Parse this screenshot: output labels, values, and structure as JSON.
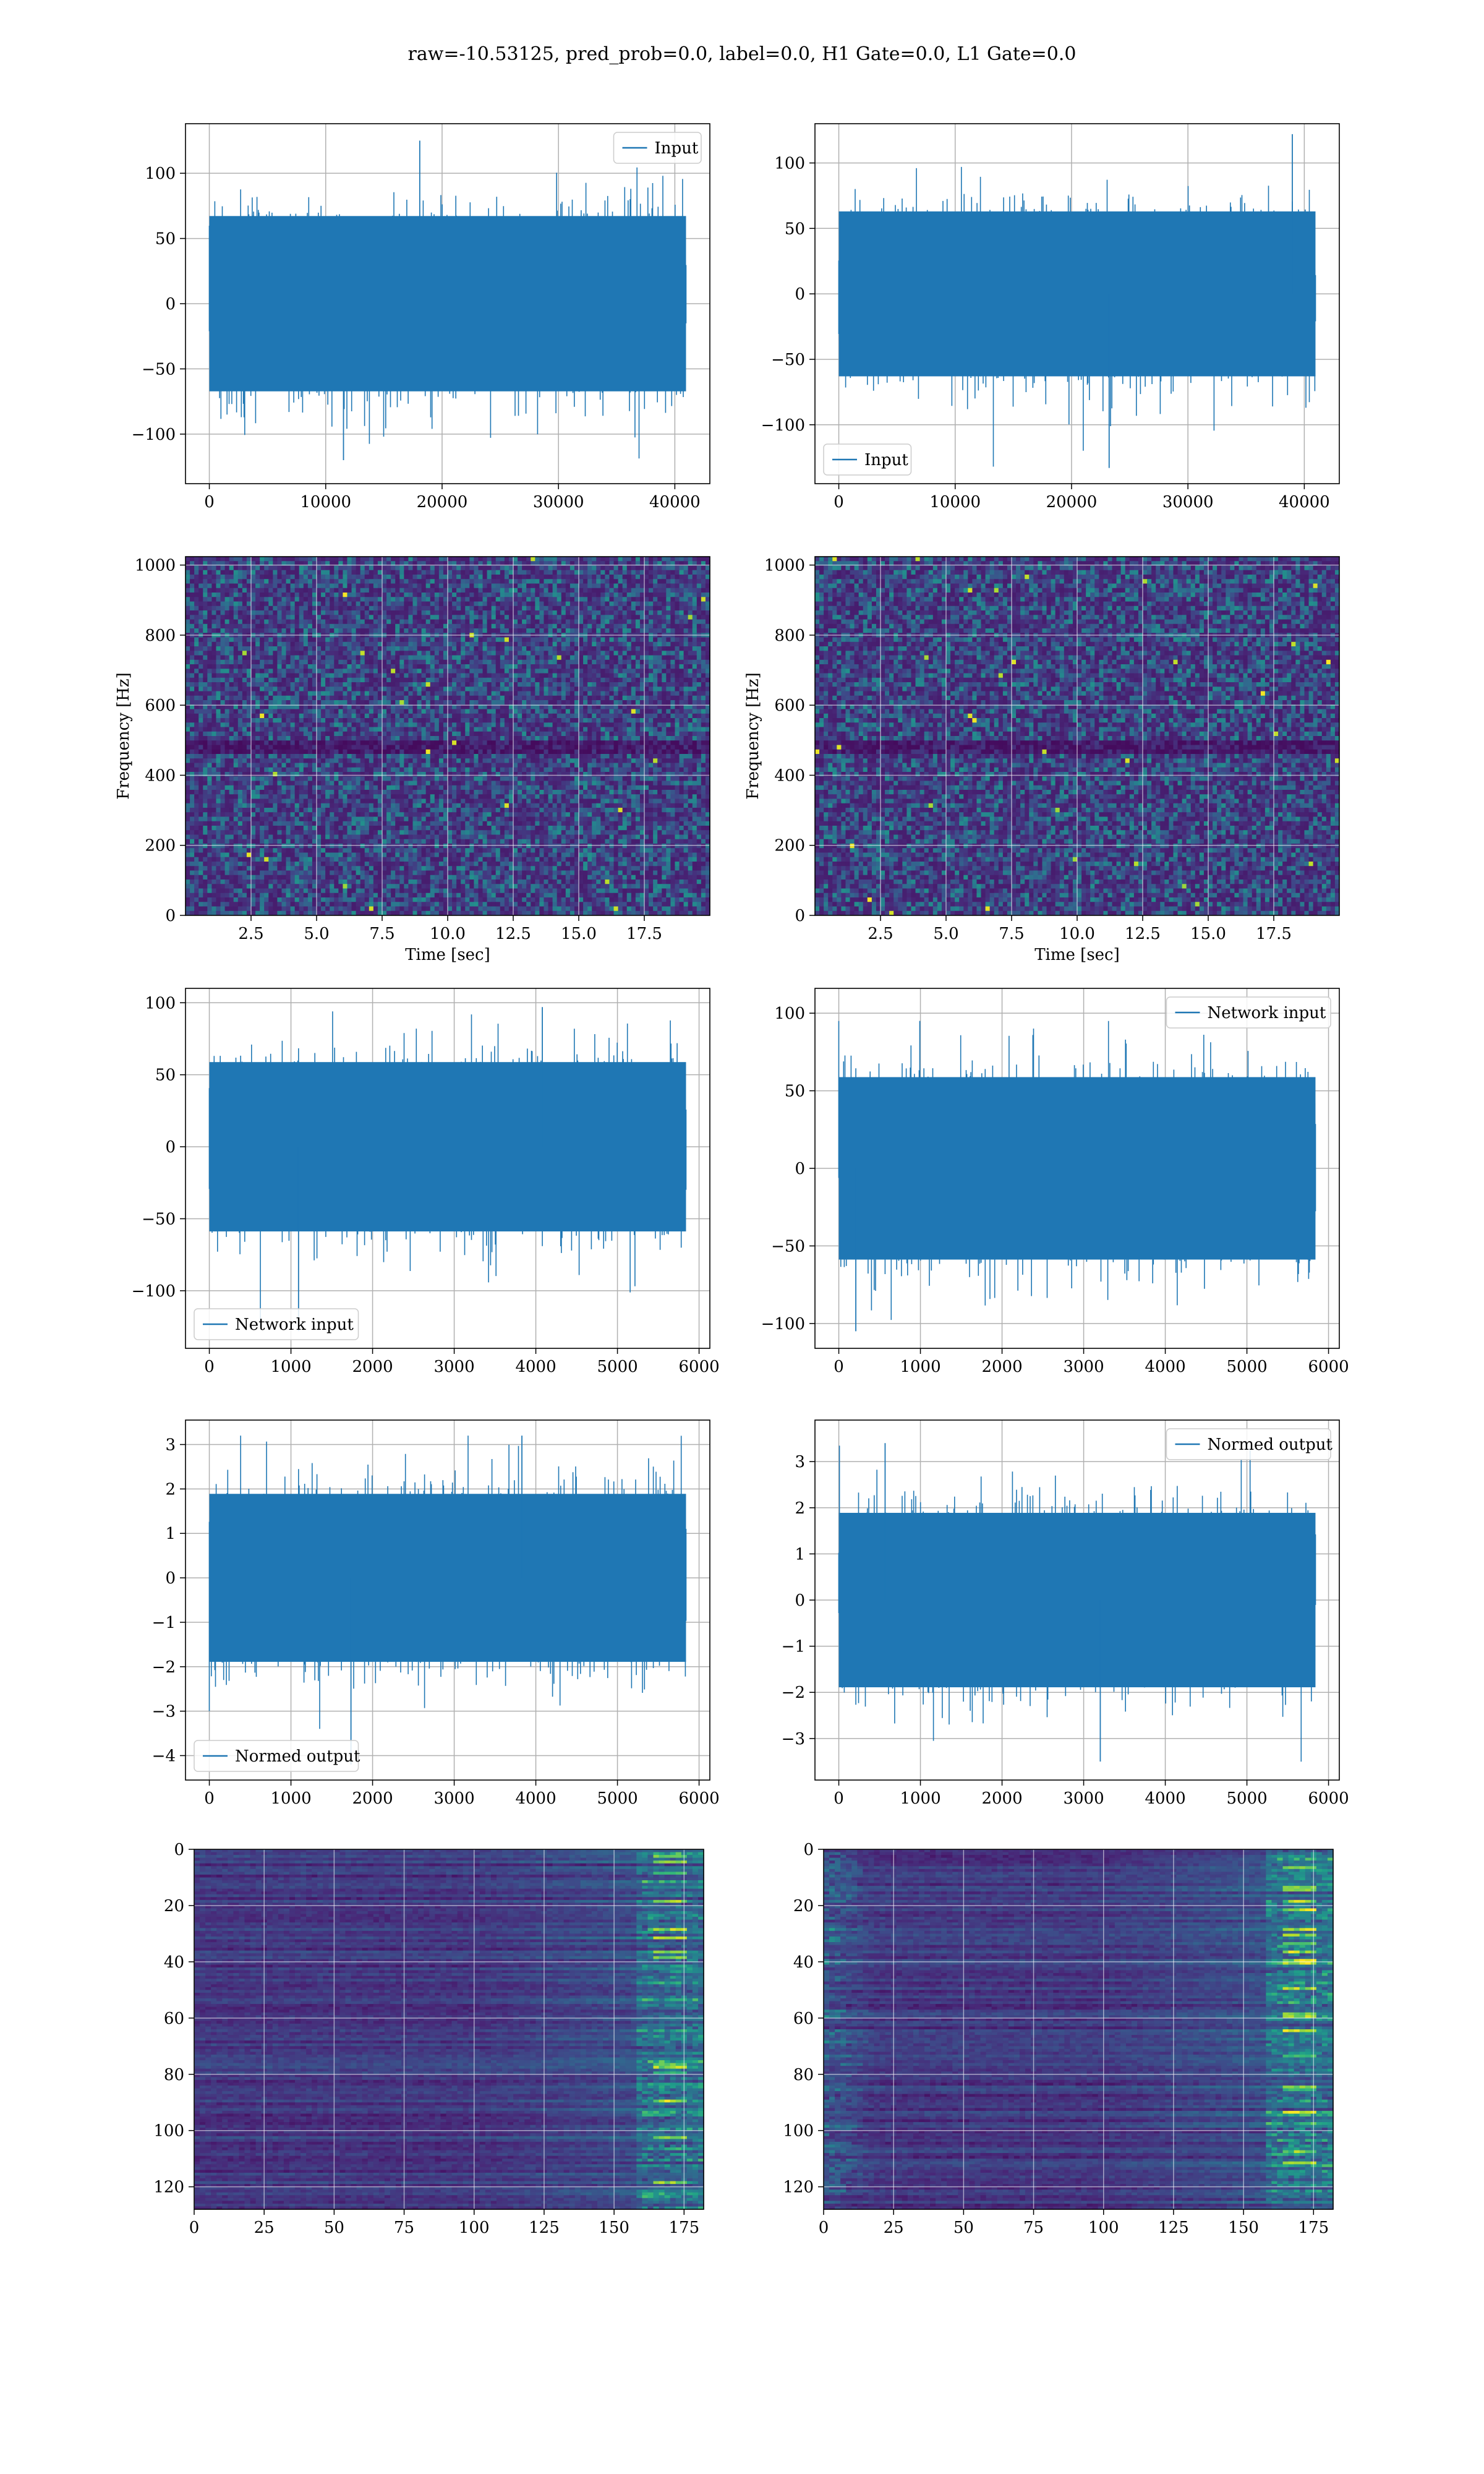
{
  "suptitle": "raw=-10.53125, pred_prob=0.0, label=0.0, H1 Gate=0.0, L1 Gate=0.0",
  "colors": {
    "line": "#1f77b4",
    "grid": "#b0b0b0",
    "viridis_low": "#440154",
    "viridis_mid": "#21918c",
    "viridis_high": "#fde725"
  },
  "chart_data": [
    {
      "id": "r1-left",
      "type": "line",
      "title": "",
      "series": [
        {
          "name": "Input",
          "length": 40960,
          "amplitude_std": 32,
          "min": -120,
          "max": 125
        }
      ],
      "xlim": [
        -2048,
        43008
      ],
      "ylim": [
        -138,
        138
      ],
      "xticks": [
        0,
        10000,
        20000,
        30000,
        40000
      ],
      "xticklabels": [
        "0",
        "10000",
        "20000",
        "30000",
        "40000"
      ],
      "yticks": [
        -100,
        -50,
        0,
        50,
        100
      ],
      "yticklabels": [
        "−100",
        "−50",
        "0",
        "50",
        "100"
      ],
      "xlabel": "",
      "ylabel": "",
      "legend": {
        "label": "Input",
        "loc": "upper right"
      },
      "grid": true
    },
    {
      "id": "r1-right",
      "type": "line",
      "title": "",
      "series": [
        {
          "name": "Input",
          "length": 40960,
          "amplitude_std": 30,
          "min": -133,
          "max": 122
        }
      ],
      "xlim": [
        -2048,
        43008
      ],
      "ylim": [
        -145,
        130
      ],
      "xticks": [
        0,
        10000,
        20000,
        30000,
        40000
      ],
      "xticklabels": [
        "0",
        "10000",
        "20000",
        "30000",
        "40000"
      ],
      "yticks": [
        -100,
        -50,
        0,
        50,
        100
      ],
      "yticklabels": [
        "−100",
        "−50",
        "0",
        "50",
        "100"
      ],
      "xlabel": "",
      "ylabel": "",
      "legend": {
        "label": "Input",
        "loc": "lower left"
      },
      "grid": true
    },
    {
      "id": "r2-left",
      "type": "heatmap",
      "title": "",
      "xlim": [
        0,
        20
      ],
      "ylim": [
        0,
        1024
      ],
      "xticks": [
        2.5,
        5.0,
        7.5,
        10.0,
        12.5,
        15.0,
        17.5
      ],
      "xticklabels": [
        "2.5",
        "5.0",
        "7.5",
        "10.0",
        "12.5",
        "15.0",
        "17.5"
      ],
      "yticks": [
        0,
        200,
        400,
        600,
        800,
        1000
      ],
      "yticklabels": [
        "0",
        "200",
        "400",
        "600",
        "800",
        "1000"
      ],
      "xlabel": "Time [sec]",
      "ylabel": "Frequency [Hz]",
      "grid": true,
      "colormap": "viridis",
      "cols": 120,
      "rows": 80
    },
    {
      "id": "r2-right",
      "type": "heatmap",
      "title": "",
      "xlim": [
        0,
        20
      ],
      "ylim": [
        0,
        1024
      ],
      "xticks": [
        2.5,
        5.0,
        7.5,
        10.0,
        12.5,
        15.0,
        17.5
      ],
      "xticklabels": [
        "2.5",
        "5.0",
        "7.5",
        "10.0",
        "12.5",
        "15.0",
        "17.5"
      ],
      "yticks": [
        0,
        200,
        400,
        600,
        800,
        1000
      ],
      "yticklabels": [
        "0",
        "200",
        "400",
        "600",
        "800",
        "1000"
      ],
      "xlabel": "Time [sec]",
      "ylabel": "Frequency [Hz]",
      "grid": true,
      "colormap": "viridis",
      "cols": 120,
      "rows": 80
    },
    {
      "id": "r3-left",
      "type": "line",
      "title": "",
      "series": [
        {
          "name": "Network input",
          "length": 5840,
          "amplitude_std": 28,
          "min": -128,
          "max": 97
        }
      ],
      "xlim": [
        -292,
        6132
      ],
      "ylim": [
        -140,
        110
      ],
      "xticks": [
        0,
        1000,
        2000,
        3000,
        4000,
        5000,
        6000
      ],
      "xticklabels": [
        "0",
        "1000",
        "2000",
        "3000",
        "4000",
        "5000",
        "6000"
      ],
      "yticks": [
        -100,
        -50,
        0,
        50,
        100
      ],
      "yticklabels": [
        "−100",
        "−50",
        "0",
        "50",
        "100"
      ],
      "xlabel": "",
      "ylabel": "",
      "legend": {
        "label": "Network input",
        "loc": "lower left"
      },
      "grid": true
    },
    {
      "id": "r3-right",
      "type": "line",
      "title": "",
      "series": [
        {
          "name": "Network input",
          "length": 5840,
          "amplitude_std": 28,
          "min": -105,
          "max": 95
        }
      ],
      "xlim": [
        -292,
        6132
      ],
      "ylim": [
        -116,
        116
      ],
      "xticks": [
        0,
        1000,
        2000,
        3000,
        4000,
        5000,
        6000
      ],
      "xticklabels": [
        "0",
        "1000",
        "2000",
        "3000",
        "4000",
        "5000",
        "6000"
      ],
      "yticks": [
        -100,
        -50,
        0,
        50,
        100
      ],
      "yticklabels": [
        "−100",
        "−50",
        "0",
        "50",
        "100"
      ],
      "xlabel": "",
      "ylabel": "",
      "legend": {
        "label": "Network input",
        "loc": "upper right"
      },
      "grid": true
    },
    {
      "id": "r4-left",
      "type": "line",
      "title": "",
      "series": [
        {
          "name": "Normed output",
          "length": 5840,
          "amplitude_std": 0.9,
          "min": -4.2,
          "max": 3.2
        }
      ],
      "xlim": [
        -292,
        6132
      ],
      "ylim": [
        -4.55,
        3.55
      ],
      "xticks": [
        0,
        1000,
        2000,
        3000,
        4000,
        5000,
        6000
      ],
      "xticklabels": [
        "0",
        "1000",
        "2000",
        "3000",
        "4000",
        "5000",
        "6000"
      ],
      "yticks": [
        -4,
        -3,
        -2,
        -1,
        0,
        1,
        2,
        3
      ],
      "yticklabels": [
        "−4",
        "−3",
        "−2",
        "−1",
        "0",
        "1",
        "2",
        "3"
      ],
      "xlabel": "",
      "ylabel": "",
      "legend": {
        "label": "Normed output",
        "loc": "lower left"
      },
      "grid": true
    },
    {
      "id": "r4-right",
      "type": "line",
      "title": "",
      "series": [
        {
          "name": "Normed output",
          "length": 5840,
          "amplitude_std": 0.9,
          "min": -3.5,
          "max": 3.4
        }
      ],
      "xlim": [
        -292,
        6132
      ],
      "ylim": [
        -3.9,
        3.9
      ],
      "xticks": [
        0,
        1000,
        2000,
        3000,
        4000,
        5000,
        6000
      ],
      "xticklabels": [
        "0",
        "1000",
        "2000",
        "3000",
        "4000",
        "5000",
        "6000"
      ],
      "yticks": [
        -3,
        -2,
        -1,
        0,
        1,
        2,
        3
      ],
      "yticklabels": [
        "−3",
        "−2",
        "−1",
        "0",
        "1",
        "2",
        "3"
      ],
      "xlabel": "",
      "ylabel": "",
      "legend": {
        "label": "Normed output",
        "loc": "upper right"
      },
      "grid": true
    },
    {
      "id": "r5-left",
      "type": "heatmap",
      "title": "",
      "xlim": [
        0,
        182
      ],
      "ylim": [
        128,
        0
      ],
      "xticks": [
        0,
        25,
        50,
        75,
        100,
        125,
        150,
        175
      ],
      "xticklabels": [
        "0",
        "25",
        "50",
        "75",
        "100",
        "125",
        "150",
        "175"
      ],
      "yticks": [
        0,
        20,
        40,
        60,
        80,
        100,
        120
      ],
      "yticklabels": [
        "0",
        "20",
        "40",
        "60",
        "80",
        "100",
        "120"
      ],
      "xlabel": "",
      "ylabel": "",
      "grid": true,
      "colormap": "viridis",
      "cols": 91,
      "rows": 128,
      "bright_region": "right edge (x > 150)"
    },
    {
      "id": "r5-right",
      "type": "heatmap",
      "title": "",
      "xlim": [
        0,
        182
      ],
      "ylim": [
        128,
        0
      ],
      "xticks": [
        0,
        25,
        50,
        75,
        100,
        125,
        150,
        175
      ],
      "xticklabels": [
        "0",
        "25",
        "50",
        "75",
        "100",
        "125",
        "150",
        "175"
      ],
      "yticks": [
        0,
        20,
        40,
        60,
        80,
        100,
        120
      ],
      "yticklabels": [
        "0",
        "20",
        "40",
        "60",
        "80",
        "100",
        "120"
      ],
      "xlabel": "",
      "ylabel": "",
      "grid": true,
      "colormap": "viridis",
      "cols": 91,
      "rows": 128,
      "bright_region": "left edge (x < 20) and right edge (x > 150)"
    }
  ]
}
